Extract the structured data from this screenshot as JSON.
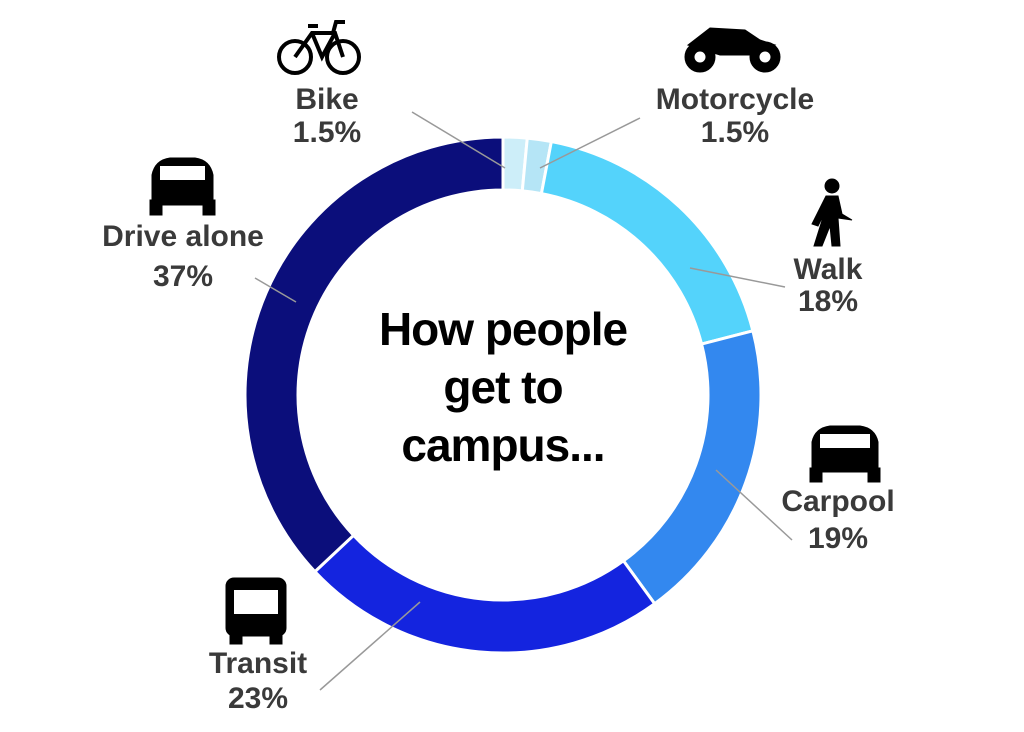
{
  "chart_data": {
    "type": "donut",
    "title": "How people get to campus...",
    "categories": [
      "Bike",
      "Motorcycle",
      "Walk",
      "Carpool",
      "Transit",
      "Drive alone"
    ],
    "values": [
      1.5,
      1.5,
      18,
      19,
      23,
      37
    ],
    "value_labels": [
      "1.5%",
      "1.5%",
      "18%",
      "19%",
      "23%",
      "37%"
    ],
    "colors": [
      "#cdeef9",
      "#b5e5f6",
      "#54d3fb",
      "#3388ef",
      "#1424df",
      "#0b0e7b"
    ]
  }
}
